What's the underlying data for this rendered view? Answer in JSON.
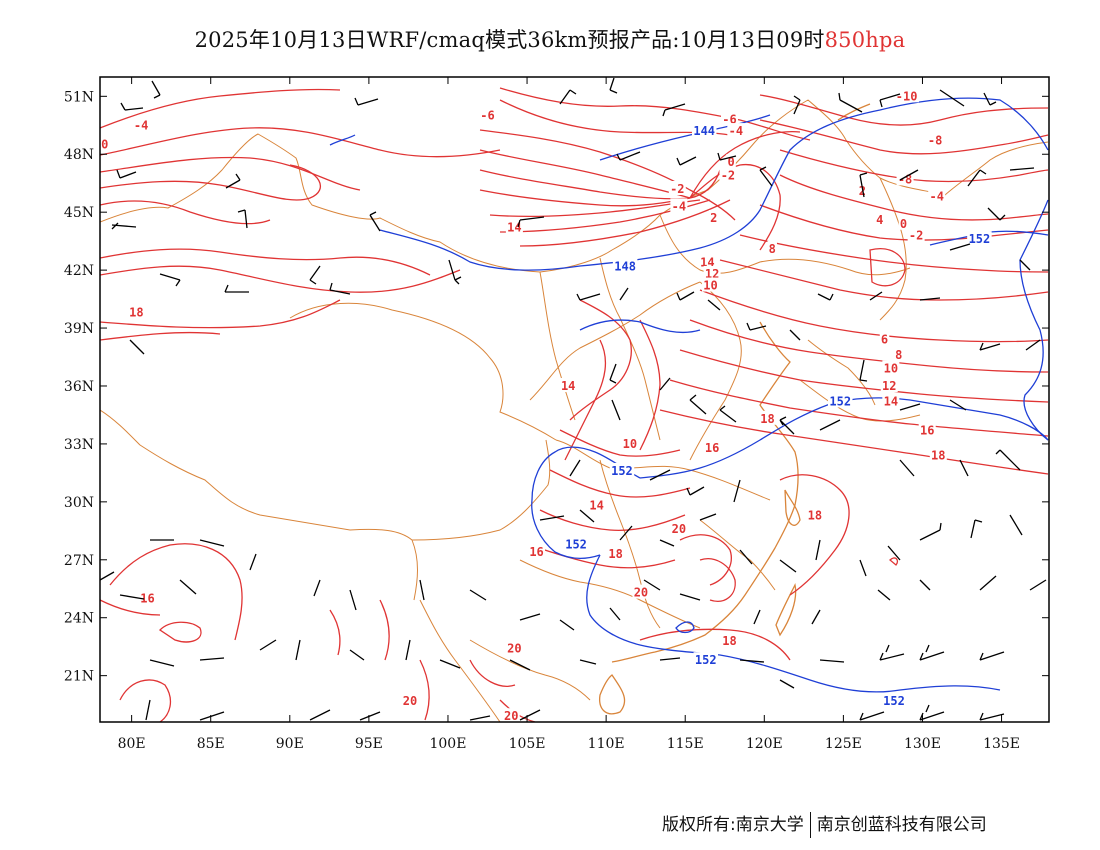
{
  "title": {
    "main": "2025年10月13日WRF/cmaq模式36km预报产品:10月13日09时",
    "level": "850hpa"
  },
  "colors": {
    "temperature": "#e03434",
    "geopotential": "#1f3fd6",
    "border": "#d9853b",
    "wind": "#000000",
    "frame": "#000000"
  },
  "axes": {
    "x_ticks": [
      "80E",
      "85E",
      "90E",
      "95E",
      "100E",
      "105E",
      "110E",
      "115E",
      "120E",
      "125E",
      "130E",
      "135E"
    ],
    "x_values": [
      80,
      85,
      90,
      95,
      100,
      105,
      110,
      115,
      120,
      125,
      130,
      135
    ],
    "y_ticks": [
      "51N",
      "48N",
      "45N",
      "42N",
      "39N",
      "36N",
      "33N",
      "30N",
      "27N",
      "24N",
      "21N"
    ],
    "y_values": [
      51,
      48,
      45,
      42,
      39,
      36,
      33,
      30,
      27,
      24,
      21
    ],
    "lon_range": [
      78,
      138
    ],
    "lat_range": [
      18.6,
      52
    ]
  },
  "temperature_labels": [
    {
      "text": "-4",
      "lon": 80.6,
      "lat": 49.5
    },
    {
      "text": "-6",
      "lon": 102.5,
      "lat": 50.0
    },
    {
      "text": "0",
      "lon": 78.3,
      "lat": 48.5
    },
    {
      "text": "-6",
      "lon": 117.8,
      "lat": 49.8
    },
    {
      "text": "-4",
      "lon": 118.2,
      "lat": 49.2
    },
    {
      "text": "0",
      "lon": 117.9,
      "lat": 47.6
    },
    {
      "text": "-2",
      "lon": 117.7,
      "lat": 46.9
    },
    {
      "text": "-2",
      "lon": 114.5,
      "lat": 46.2
    },
    {
      "text": "-4",
      "lon": 114.6,
      "lat": 45.3
    },
    {
      "text": "2",
      "lon": 116.8,
      "lat": 44.7
    },
    {
      "text": "-10",
      "lon": 129.0,
      "lat": 51.0
    },
    {
      "text": "-8",
      "lon": 130.8,
      "lat": 48.7
    },
    {
      "text": "-8",
      "lon": 128.9,
      "lat": 46.7
    },
    {
      "text": "-4",
      "lon": 130.9,
      "lat": 45.8
    },
    {
      "text": "2",
      "lon": 126.2,
      "lat": 46.1
    },
    {
      "text": "4",
      "lon": 127.3,
      "lat": 44.6
    },
    {
      "text": "0",
      "lon": 128.8,
      "lat": 44.4
    },
    {
      "text": "-2",
      "lon": 129.6,
      "lat": 43.8
    },
    {
      "text": "14",
      "lon": 104.2,
      "lat": 44.2
    },
    {
      "text": "14",
      "lon": 116.4,
      "lat": 42.4
    },
    {
      "text": "12",
      "lon": 116.7,
      "lat": 41.8
    },
    {
      "text": "10",
      "lon": 116.6,
      "lat": 41.2
    },
    {
      "text": "18",
      "lon": 80.3,
      "lat": 39.8
    },
    {
      "text": "8",
      "lon": 120.5,
      "lat": 43.1
    },
    {
      "text": "6",
      "lon": 127.6,
      "lat": 38.4
    },
    {
      "text": "8",
      "lon": 128.5,
      "lat": 37.6
    },
    {
      "text": "10",
      "lon": 128.0,
      "lat": 36.9
    },
    {
      "text": "12",
      "lon": 127.9,
      "lat": 36.0
    },
    {
      "text": "14",
      "lon": 128.0,
      "lat": 35.2
    },
    {
      "text": "16",
      "lon": 130.3,
      "lat": 33.7
    },
    {
      "text": "18",
      "lon": 131.0,
      "lat": 32.4
    },
    {
      "text": "14",
      "lon": 107.6,
      "lat": 36.0
    },
    {
      "text": "10",
      "lon": 111.5,
      "lat": 33.0
    },
    {
      "text": "18",
      "lon": 120.2,
      "lat": 34.3
    },
    {
      "text": "16",
      "lon": 116.7,
      "lat": 32.8
    },
    {
      "text": "14",
      "lon": 109.4,
      "lat": 29.8
    },
    {
      "text": "18",
      "lon": 123.2,
      "lat": 29.3
    },
    {
      "text": "20",
      "lon": 114.6,
      "lat": 28.6
    },
    {
      "text": "16",
      "lon": 105.6,
      "lat": 27.4
    },
    {
      "text": "18",
      "lon": 110.6,
      "lat": 27.3
    },
    {
      "text": "16",
      "lon": 81.0,
      "lat": 25.0
    },
    {
      "text": "20",
      "lon": 112.2,
      "lat": 25.3
    },
    {
      "text": "18",
      "lon": 117.8,
      "lat": 22.8
    },
    {
      "text": "20",
      "lon": 104.2,
      "lat": 22.4
    },
    {
      "text": "20",
      "lon": 97.6,
      "lat": 19.7
    },
    {
      "text": "20",
      "lon": 104.0,
      "lat": 18.9
    }
  ],
  "geopotential_labels": [
    {
      "text": "144",
      "lon": 116.2,
      "lat": 49.2
    },
    {
      "text": "148",
      "lon": 111.2,
      "lat": 42.2
    },
    {
      "text": "152",
      "lon": 133.6,
      "lat": 43.6
    },
    {
      "text": "152",
      "lon": 124.8,
      "lat": 35.2
    },
    {
      "text": "152",
      "lon": 111.0,
      "lat": 31.6
    },
    {
      "text": "152",
      "lon": 108.1,
      "lat": 27.8
    },
    {
      "text": "152",
      "lon": 116.3,
      "lat": 21.8
    },
    {
      "text": "152",
      "lon": 128.2,
      "lat": 19.7
    }
  ],
  "copyright": {
    "left": "版权所有:南京大学",
    "right": "南京创蓝科技有限公司"
  }
}
